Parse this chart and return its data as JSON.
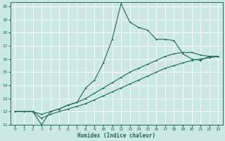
{
  "xlabel": "Humidex (Indice chaleur)",
  "ylabel": "",
  "background_color": "#cce8e6",
  "grid_color": "#b0d4d2",
  "line_color": "#1a6b5a",
  "xlim": [
    -0.5,
    23.5
  ],
  "ylim": [
    11,
    20.3
  ],
  "xticks": [
    0,
    1,
    2,
    3,
    4,
    5,
    6,
    7,
    8,
    9,
    10,
    11,
    12,
    13,
    14,
    15,
    16,
    17,
    18,
    19,
    20,
    21,
    22,
    23
  ],
  "yticks": [
    11,
    12,
    13,
    14,
    15,
    16,
    17,
    18,
    19,
    20
  ],
  "series1_x": [
    0,
    1,
    2,
    3,
    4,
    5,
    6,
    7,
    8,
    9,
    10,
    11,
    12,
    13,
    14,
    15,
    16,
    17,
    18,
    19,
    20,
    21,
    22,
    23
  ],
  "series1_y": [
    12.0,
    12.0,
    12.0,
    11.0,
    12.0,
    12.2,
    12.5,
    12.7,
    13.8,
    14.4,
    15.7,
    17.5,
    20.2,
    18.8,
    18.4,
    18.2,
    17.5,
    17.5,
    17.4,
    16.4,
    16.0,
    15.9,
    16.2,
    16.2
  ],
  "series2_x": [
    0,
    1,
    2,
    3,
    4,
    5,
    6,
    7,
    8,
    9,
    10,
    11,
    12,
    13,
    14,
    15,
    16,
    17,
    18,
    19,
    20,
    21,
    22,
    23
  ],
  "series2_y": [
    12.0,
    12.0,
    12.0,
    11.8,
    12.0,
    12.2,
    12.5,
    12.7,
    13.0,
    13.4,
    13.8,
    14.2,
    14.6,
    15.0,
    15.3,
    15.6,
    15.9,
    16.2,
    16.4,
    16.5,
    16.5,
    16.3,
    16.2,
    16.2
  ],
  "series3_x": [
    0,
    1,
    2,
    3,
    4,
    5,
    6,
    7,
    8,
    9,
    10,
    11,
    12,
    13,
    14,
    15,
    16,
    17,
    18,
    19,
    20,
    21,
    22,
    23
  ],
  "series3_y": [
    12.0,
    12.0,
    12.0,
    11.5,
    11.8,
    12.0,
    12.2,
    12.4,
    12.6,
    12.9,
    13.2,
    13.5,
    13.8,
    14.1,
    14.4,
    14.7,
    15.0,
    15.3,
    15.5,
    15.7,
    15.9,
    16.0,
    16.1,
    16.2
  ]
}
